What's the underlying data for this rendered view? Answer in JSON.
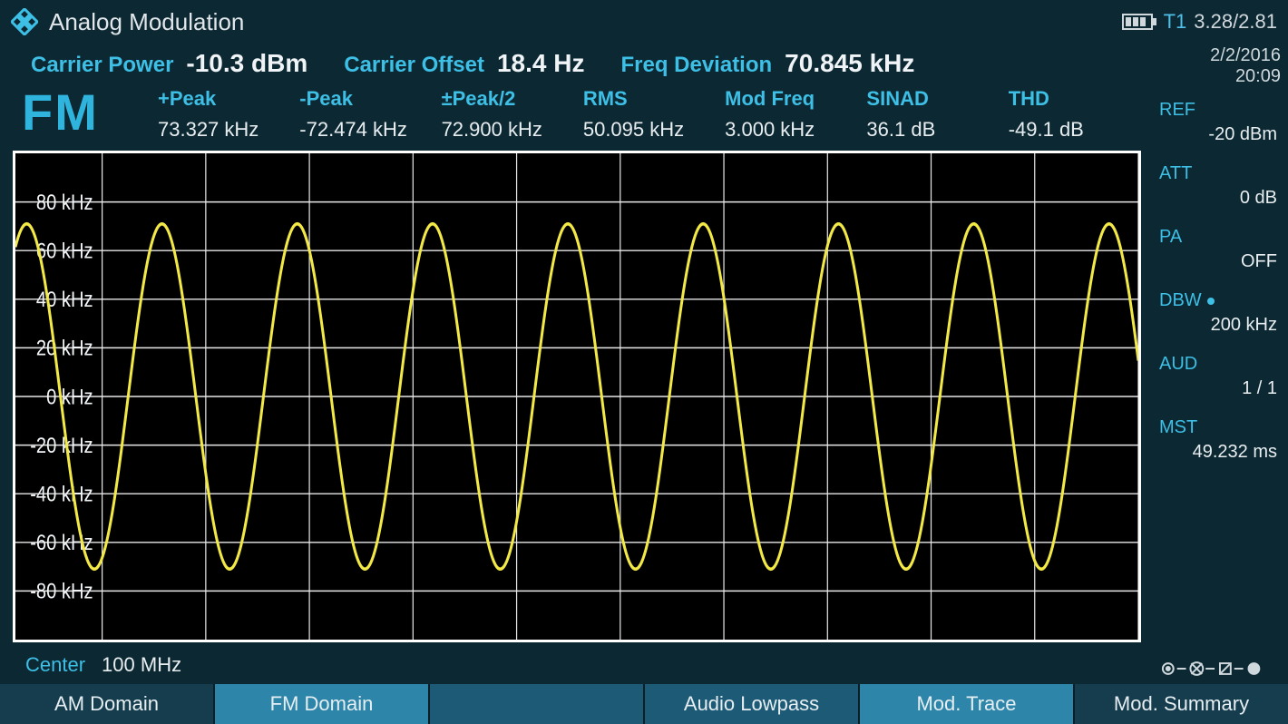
{
  "header": {
    "title": "Analog Modulation",
    "t1_label": "T1",
    "versions": "3.28/2.81"
  },
  "datetime": {
    "date": "2/2/2016",
    "time": "20:09"
  },
  "carrier": {
    "power_label": "Carrier Power",
    "power_value": "-10.3 dBm",
    "offset_label": "Carrier Offset",
    "offset_value": "18.4 Hz",
    "dev_label": "Freq Deviation",
    "dev_value": "70.845 kHz"
  },
  "mode": "FM",
  "stats": [
    {
      "label": "+Peak",
      "value": "73.327 kHz"
    },
    {
      "label": "-Peak",
      "value": "-72.474 kHz"
    },
    {
      "label": "±Peak/2",
      "value": "72.900 kHz"
    },
    {
      "label": "RMS",
      "value": "50.095 kHz"
    },
    {
      "label": "Mod Freq",
      "value": "3.000 kHz"
    },
    {
      "label": "SINAD",
      "value": "36.1 dB"
    },
    {
      "label": "THD",
      "value": "-49.1 dB"
    }
  ],
  "center": {
    "label": "Center",
    "value": "100 MHz"
  },
  "side": [
    {
      "key": "REF",
      "value": "-20 dBm",
      "dot": false
    },
    {
      "key": "ATT",
      "value": "0 dB",
      "dot": false
    },
    {
      "key": "PA",
      "value": "OFF",
      "dot": false
    },
    {
      "key": "DBW",
      "value": "200 kHz",
      "dot": true
    },
    {
      "key": "AUD",
      "value": "1 / 1",
      "dot": false
    },
    {
      "key": "MST",
      "value": "49.232 ms",
      "dot": false
    }
  ],
  "tabs": [
    {
      "label": "AM Domain",
      "state": "dim"
    },
    {
      "label": "FM Domain",
      "state": "active"
    },
    {
      "label": "",
      "state": "normal"
    },
    {
      "label": "Audio Lowpass",
      "state": "normal"
    },
    {
      "label": "Mod. Trace",
      "state": "active"
    },
    {
      "label": "Mod. Summary",
      "state": "dim"
    }
  ],
  "chart": {
    "ylim": [
      -100,
      100
    ],
    "ytick_step": 20,
    "yticks": [
      80,
      60,
      40,
      20,
      0,
      -20,
      -40,
      -60,
      -80
    ],
    "y_unit": "kHz",
    "xgrid_count": 10,
    "amplitude": 71,
    "cycles": 8.3,
    "start_phase_deg": 60,
    "trace_color": "#f2e846",
    "grid_color": "#e8e8e8",
    "grid_width": 1.2,
    "background": "#000000",
    "axis_label_color": "#f0f4f6",
    "axis_label_fontsize": 20
  },
  "colors": {
    "cyan": "#3dbfe6",
    "text": "#e8eef0",
    "panel": "#0c2832",
    "tab_normal": "#1c5a75",
    "tab_active": "#2d86a9",
    "tab_dim": "#153d4e"
  }
}
